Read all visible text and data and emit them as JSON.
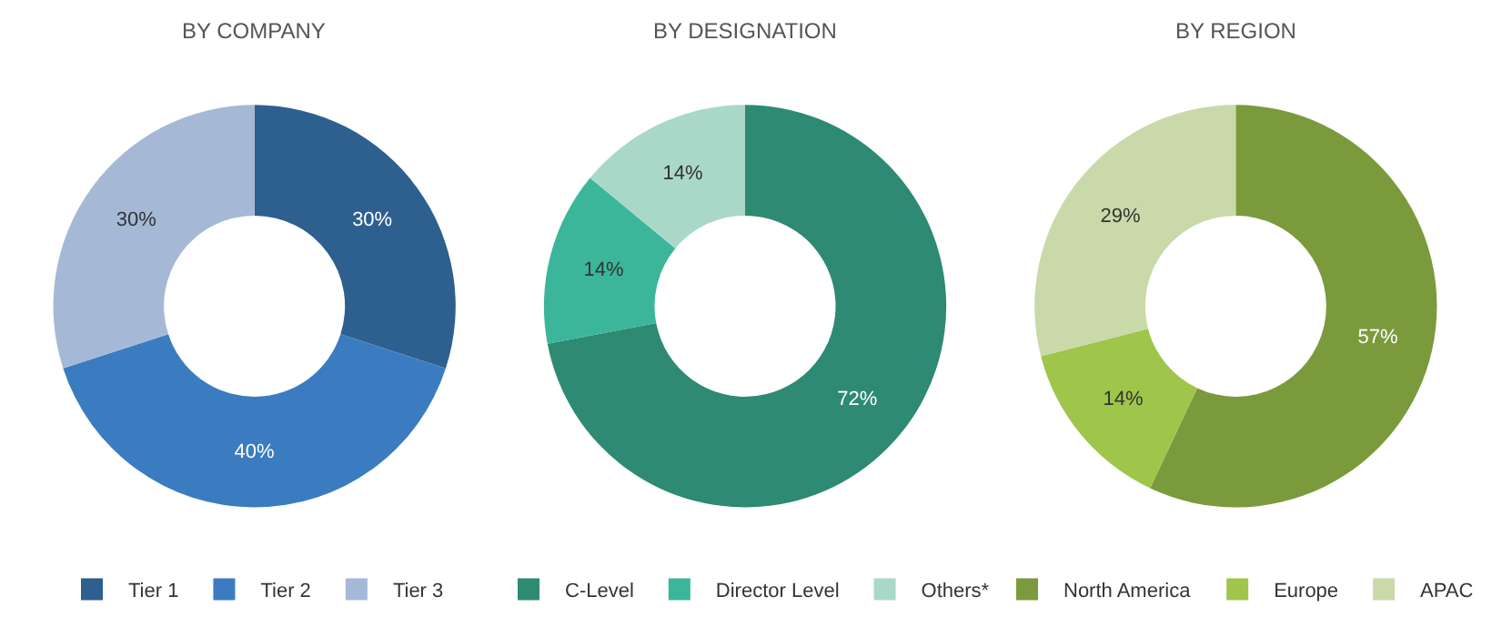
{
  "chart_data": [
    {
      "type": "donut",
      "title": "BY COMPANY",
      "categories": [
        "Tier 1",
        "Tier 2",
        "Tier 3"
      ],
      "values": [
        30,
        40,
        30
      ],
      "value_labels": [
        "30%",
        "40%",
        "30%"
      ],
      "colors": [
        "#2d5f8f",
        "#3b7cc0",
        "#a5b9d7"
      ],
      "legend": "bottom"
    },
    {
      "type": "donut",
      "title": "BY DESIGNATION",
      "categories": [
        "C-Level",
        "Director Level",
        "Others*"
      ],
      "values": [
        72,
        14,
        14
      ],
      "value_labels": [
        "72%",
        "14%",
        "14%"
      ],
      "colors": [
        "#2e8a72",
        "#3cb69a",
        "#a9d8c9"
      ],
      "legend": "bottom"
    },
    {
      "type": "donut",
      "title": "BY REGION",
      "categories": [
        "North America",
        "Europe",
        "APAC"
      ],
      "values": [
        57,
        14,
        29
      ],
      "value_labels": [
        "57%",
        "14%",
        "29%"
      ],
      "colors": [
        "#7b9a3c",
        "#9fc54b",
        "#c9d9a9"
      ],
      "legend": "bottom"
    }
  ]
}
